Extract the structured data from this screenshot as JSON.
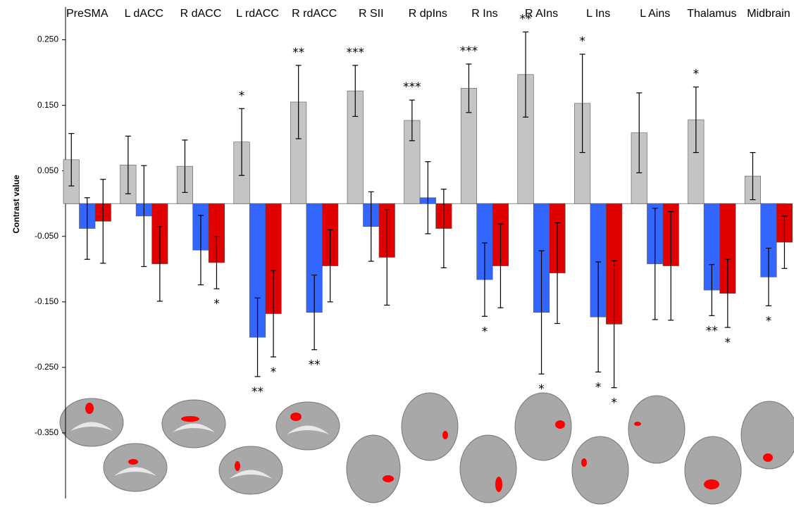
{
  "chart_data": {
    "type": "bar",
    "y_label": "Contrast value",
    "categories": [
      "PreSMA",
      "L dACC",
      "R dACC",
      "L rdACC",
      "R rdACC",
      "R SII",
      "R dpIns",
      "R Ins",
      "R AIns",
      "L Ins",
      "L Ains",
      "Thalamus",
      "Midbrain"
    ],
    "ylim": [
      -0.45,
      0.3
    ],
    "yticks": [
      {
        "value": 0.25,
        "label": "0.250"
      },
      {
        "value": 0.15,
        "label": "0.150"
      },
      {
        "value": 0.05,
        "label": "0.050"
      },
      {
        "value": -0.05,
        "label": "-0.050"
      },
      {
        "value": -0.15,
        "label": "-0.150"
      },
      {
        "value": -0.25,
        "label": "-0.250"
      },
      {
        "value": -0.35,
        "label": "-0.350"
      }
    ],
    "series": [
      {
        "color": "#c4c4c4",
        "values": [
          0.067,
          0.059,
          0.057,
          0.094,
          0.155,
          0.172,
          0.127,
          0.176,
          0.197,
          0.153,
          0.108,
          0.128,
          0.042
        ],
        "errors": [
          0.04,
          0.044,
          0.04,
          0.051,
          0.056,
          0.039,
          0.031,
          0.037,
          0.065,
          0.075,
          0.061,
          0.05,
          0.036
        ],
        "significance": [
          null,
          null,
          null,
          "*",
          "**",
          "***",
          "***",
          "***",
          "**",
          "*",
          null,
          "*",
          null
        ]
      },
      {
        "color": "#3366ff",
        "values": [
          -0.038,
          -0.019,
          -0.071,
          -0.204,
          -0.166,
          -0.035,
          0.009,
          -0.116,
          -0.166,
          -0.173,
          -0.092,
          -0.132,
          -0.112
        ],
        "errors": [
          0.047,
          0.077,
          0.053,
          0.06,
          0.057,
          0.053,
          0.055,
          0.056,
          0.094,
          0.084,
          0.085,
          0.039,
          0.044
        ],
        "significance": [
          null,
          null,
          null,
          "**",
          "**",
          null,
          null,
          "*",
          "*",
          "*",
          null,
          "**",
          "*"
        ]
      },
      {
        "color": "#e00000",
        "values": [
          -0.027,
          -0.092,
          -0.09,
          -0.168,
          -0.095,
          -0.082,
          -0.038,
          -0.095,
          -0.106,
          -0.184,
          -0.095,
          -0.137,
          -0.059
        ],
        "errors": [
          0.064,
          0.057,
          0.04,
          0.066,
          0.055,
          0.073,
          0.06,
          0.064,
          0.077,
          0.097,
          0.083,
          0.052,
          0.04
        ],
        "significance": [
          null,
          null,
          "*",
          "*",
          null,
          null,
          null,
          null,
          null,
          "*",
          null,
          "*",
          null
        ]
      }
    ]
  }
}
